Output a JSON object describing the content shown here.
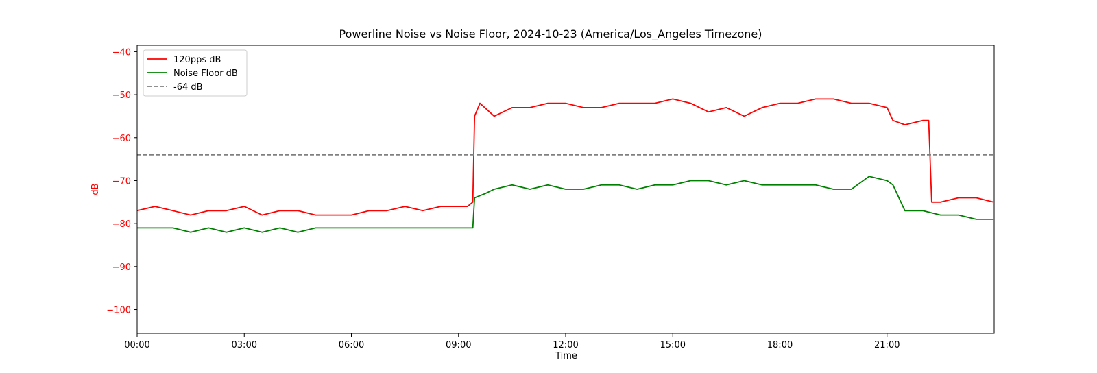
{
  "chart_data": {
    "type": "line",
    "title": "Powerline Noise vs Noise Floor, 2024-10-23 (America/Los_Angeles Timezone)",
    "xlabel": "Time",
    "ylabel": "dB",
    "x_ticks": [
      "00:00",
      "03:00",
      "06:00",
      "09:00",
      "12:00",
      "15:00",
      "18:00",
      "21:00"
    ],
    "y_ticks": [
      -40,
      -50,
      -60,
      -70,
      -80,
      -90,
      -100
    ],
    "xlim": [
      "00:00",
      "24:00"
    ],
    "ylim": [
      -105.5,
      -38.5
    ],
    "grid": false,
    "legend_position": "upper-left",
    "colors": {
      "signal": "#ff0000",
      "floor": "#008000",
      "reference": "#808080",
      "ylabel": "#ff0000"
    },
    "series": [
      {
        "name": "120pps dB",
        "color": "#ff0000",
        "style": "solid",
        "x": [
          "00:00",
          "00:30",
          "01:00",
          "01:30",
          "02:00",
          "02:30",
          "03:00",
          "03:30",
          "04:00",
          "04:30",
          "05:00",
          "05:30",
          "06:00",
          "06:30",
          "07:00",
          "07:30",
          "08:00",
          "08:30",
          "09:00",
          "09:15",
          "09:24",
          "09:27",
          "09:36",
          "10:00",
          "10:30",
          "11:00",
          "11:30",
          "12:00",
          "12:30",
          "13:00",
          "13:30",
          "14:00",
          "14:30",
          "15:00",
          "15:30",
          "16:00",
          "16:30",
          "17:00",
          "17:30",
          "18:00",
          "18:30",
          "19:00",
          "19:30",
          "20:00",
          "20:30",
          "21:00",
          "21:10",
          "21:30",
          "22:00",
          "22:10",
          "22:15",
          "22:30",
          "23:00",
          "23:30",
          "23:59"
        ],
        "values": [
          -77,
          -76,
          -77,
          -78,
          -77,
          -77,
          -76,
          -78,
          -77,
          -77,
          -78,
          -78,
          -78,
          -77,
          -77,
          -76,
          -77,
          -76,
          -76,
          -76,
          -75,
          -55,
          -52,
          -55,
          -53,
          -53,
          -52,
          -52,
          -53,
          -53,
          -52,
          -52,
          -52,
          -51,
          -52,
          -54,
          -53,
          -55,
          -53,
          -52,
          -52,
          -51,
          -51,
          -52,
          -52,
          -53,
          -56,
          -57,
          -56,
          -56,
          -75,
          -75,
          -74,
          -74,
          -75
        ]
      },
      {
        "name": "Noise Floor dB",
        "color": "#008000",
        "style": "solid",
        "x": [
          "00:00",
          "00:30",
          "01:00",
          "01:30",
          "02:00",
          "02:30",
          "03:00",
          "03:30",
          "04:00",
          "04:30",
          "05:00",
          "05:30",
          "06:00",
          "06:30",
          "07:00",
          "07:30",
          "08:00",
          "08:30",
          "09:00",
          "09:24",
          "09:27",
          "09:45",
          "10:00",
          "10:30",
          "11:00",
          "11:30",
          "12:00",
          "12:30",
          "13:00",
          "13:30",
          "14:00",
          "14:30",
          "15:00",
          "15:30",
          "16:00",
          "16:30",
          "17:00",
          "17:30",
          "18:00",
          "18:30",
          "19:00",
          "19:30",
          "20:00",
          "20:30",
          "21:00",
          "21:10",
          "21:30",
          "22:00",
          "22:30",
          "23:00",
          "23:30",
          "23:59"
        ],
        "values": [
          -81,
          -81,
          -81,
          -82,
          -81,
          -82,
          -81,
          -82,
          -81,
          -82,
          -81,
          -81,
          -81,
          -81,
          -81,
          -81,
          -81,
          -81,
          -81,
          -81,
          -74,
          -73,
          -72,
          -71,
          -72,
          -71,
          -72,
          -72,
          -71,
          -71,
          -72,
          -71,
          -71,
          -70,
          -70,
          -71,
          -70,
          -71,
          -71,
          -71,
          -71,
          -72,
          -72,
          -69,
          -70,
          -71,
          -77,
          -77,
          -78,
          -78,
          -79,
          -79
        ]
      },
      {
        "name": "-64 dB",
        "color": "#808080",
        "style": "dashed",
        "x": [
          "00:00",
          "23:59"
        ],
        "values": [
          -64,
          -64
        ]
      }
    ]
  }
}
